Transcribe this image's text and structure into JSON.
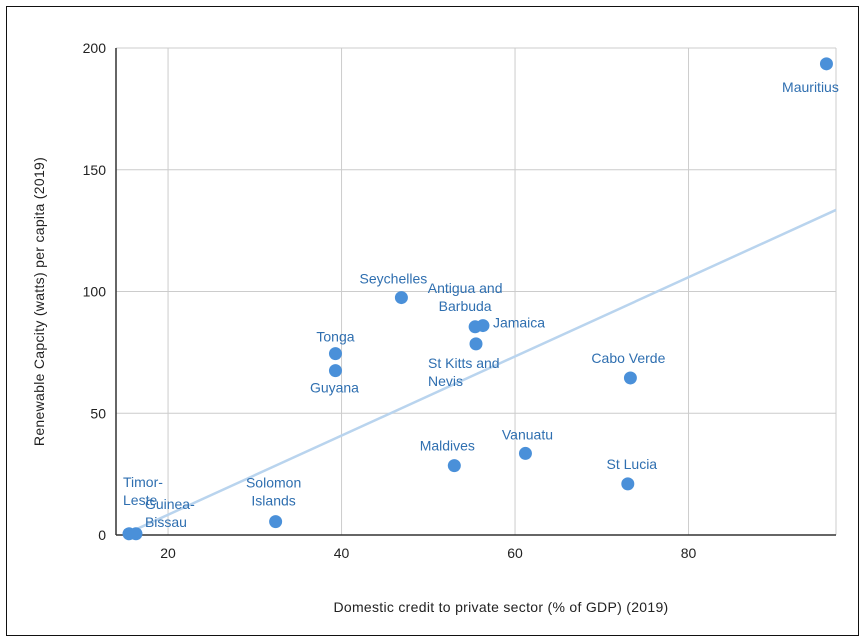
{
  "chart_data": {
    "type": "scatter",
    "xlabel": "Domestic credit to private sector (% of GDP) (2019)",
    "ylabel": "Renewable Capcity (watts) per capita (2019)",
    "xlim": [
      14,
      97
    ],
    "ylim": [
      0,
      200
    ],
    "x_ticks": [
      20,
      40,
      60,
      80
    ],
    "y_ticks": [
      0,
      50,
      100,
      150,
      200
    ],
    "grid": true,
    "point_color": "#4a90d9",
    "trend_color": "#b9d4ee",
    "trendline": {
      "x": [
        15.5,
        97
      ],
      "y": [
        1,
        133.5
      ]
    },
    "points": [
      {
        "label_lines": [
          "Mauritius"
        ],
        "x": 95.9,
        "y": 193.5
      },
      {
        "label_lines": [
          "Seychelles"
        ],
        "x": 46.9,
        "y": 97.5
      },
      {
        "label_lines": [
          "Antigua and",
          "Barbuda"
        ],
        "x": 55.4,
        "y": 85.5
      },
      {
        "label_lines": [
          "Jamaica"
        ],
        "x": 56.3,
        "y": 86
      },
      {
        "label_lines": [
          "St Kitts and",
          "Nevis"
        ],
        "x": 55.5,
        "y": 78.5
      },
      {
        "label_lines": [
          "Tonga"
        ],
        "x": 39.3,
        "y": 74.5
      },
      {
        "label_lines": [
          "Guyana"
        ],
        "x": 39.3,
        "y": 67.5
      },
      {
        "label_lines": [
          "Cabo Verde"
        ],
        "x": 73.3,
        "y": 64.5
      },
      {
        "label_lines": [
          "Maldives"
        ],
        "x": 53.0,
        "y": 28.5
      },
      {
        "label_lines": [
          "Vanuatu"
        ],
        "x": 61.2,
        "y": 33.5
      },
      {
        "label_lines": [
          "St Lucia"
        ],
        "x": 73.0,
        "y": 21
      },
      {
        "label_lines": [
          "Solomon",
          "Islands"
        ],
        "x": 32.4,
        "y": 5.5
      },
      {
        "label_lines": [
          "Timor-",
          "Leste"
        ],
        "x": 15.5,
        "y": 0.5
      },
      {
        "label_lines": [
          "Guinea-",
          "Bissau"
        ],
        "x": 16.3,
        "y": 0.5
      }
    ]
  }
}
